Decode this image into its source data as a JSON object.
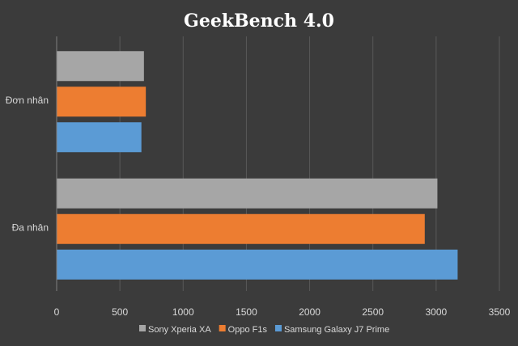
{
  "chart_data": {
    "type": "bar",
    "orientation": "horizontal",
    "title": "GeekBench 4.0",
    "categories": [
      "Đơn nhân",
      "Đa nhân"
    ],
    "series": [
      {
        "name": "Sony Xperia XA",
        "color": "#a6a6a6",
        "values": [
          690,
          3010
        ]
      },
      {
        "name": "Oppo F1s",
        "color": "#ed7d31",
        "values": [
          705,
          2910
        ]
      },
      {
        "name": "Samsung Galaxy J7 Prime",
        "color": "#5b9bd5",
        "values": [
          670,
          3170
        ]
      }
    ],
    "xlim": [
      0,
      3500
    ],
    "xticks": [
      0,
      500,
      1000,
      1500,
      2000,
      2500,
      3000,
      3500
    ],
    "grid": true,
    "legend": "bottom",
    "background": "#3b3b3b"
  }
}
